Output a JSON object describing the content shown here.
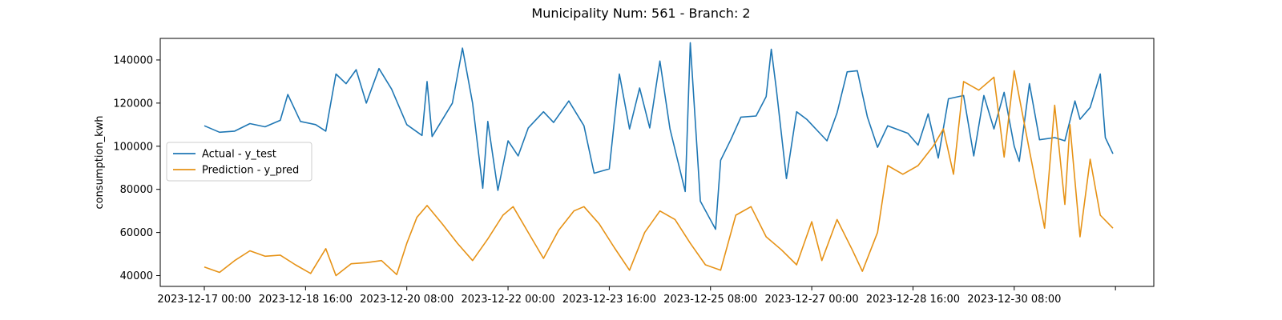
{
  "chart_data": {
    "type": "line",
    "title": "Municipality Num: 561 - Branch: 2",
    "xlabel": "",
    "ylabel": "consumption_kwh",
    "ylim": [
      35000,
      150000
    ],
    "xlim": [
      "2023-12-17 00:00",
      "2023-12-31 23:00"
    ],
    "x_tick_labels": [
      "2023-12-17 00:00",
      "2023-12-18 16:00",
      "2023-12-20 08:00",
      "2023-12-22 00:00",
      "2023-12-23 16:00",
      "2023-12-25 08:00",
      "2023-12-27 00:00",
      "2023-12-28 16:00",
      "2023-12-30 08:00",
      ""
    ],
    "y_ticks": [
      40000,
      60000,
      80000,
      100000,
      120000,
      140000
    ],
    "y_tick_labels": [
      "40000",
      "60000",
      "80000",
      "100000",
      "120000",
      "140000"
    ],
    "legend_position": "center-left",
    "grid": false,
    "series": [
      {
        "name": "Actual - y_test",
        "color": "#1f77b4",
        "points": [
          [
            "2023-12-17 00:00",
            109500
          ],
          [
            "2023-12-17 06:00",
            106500
          ],
          [
            "2023-12-17 12:00",
            107000
          ],
          [
            "2023-12-17 18:00",
            110500
          ],
          [
            "2023-12-18 00:00",
            109000
          ],
          [
            "2023-12-18 06:00",
            112000
          ],
          [
            "2023-12-18 09:00",
            124000
          ],
          [
            "2023-12-18 14:00",
            111500
          ],
          [
            "2023-12-18 20:00",
            110000
          ],
          [
            "2023-12-19 00:00",
            107000
          ],
          [
            "2023-12-19 04:00",
            133500
          ],
          [
            "2023-12-19 08:00",
            129000
          ],
          [
            "2023-12-19 12:00",
            135500
          ],
          [
            "2023-12-19 16:00",
            120000
          ],
          [
            "2023-12-19 21:00",
            136000
          ],
          [
            "2023-12-20 02:00",
            126500
          ],
          [
            "2023-12-20 08:00",
            110000
          ],
          [
            "2023-12-20 14:00",
            105000
          ],
          [
            "2023-12-20 16:00",
            130000
          ],
          [
            "2023-12-20 18:00",
            104500
          ],
          [
            "2023-12-21 02:00",
            120000
          ],
          [
            "2023-12-21 06:00",
            145500
          ],
          [
            "2023-12-21 10:00",
            120000
          ],
          [
            "2023-12-21 14:00",
            80500
          ],
          [
            "2023-12-21 16:00",
            111500
          ],
          [
            "2023-12-21 20:00",
            79500
          ],
          [
            "2023-12-22 00:00",
            102500
          ],
          [
            "2023-12-22 04:00",
            95500
          ],
          [
            "2023-12-22 08:00",
            108500
          ],
          [
            "2023-12-22 14:00",
            116000
          ],
          [
            "2023-12-22 18:00",
            111000
          ],
          [
            "2023-12-23 00:00",
            121000
          ],
          [
            "2023-12-23 06:00",
            109500
          ],
          [
            "2023-12-23 10:00",
            87500
          ],
          [
            "2023-12-23 16:00",
            89500
          ],
          [
            "2023-12-23 20:00",
            133500
          ],
          [
            "2023-12-24 00:00",
            108000
          ],
          [
            "2023-12-24 04:00",
            127000
          ],
          [
            "2023-12-24 08:00",
            108500
          ],
          [
            "2023-12-24 12:00",
            139500
          ],
          [
            "2023-12-24 16:00",
            108000
          ],
          [
            "2023-12-24 22:00",
            79000
          ],
          [
            "2023-12-25 00:00",
            148000
          ],
          [
            "2023-12-25 04:00",
            74500
          ],
          [
            "2023-12-25 10:00",
            61500
          ],
          [
            "2023-12-25 12:00",
            93500
          ],
          [
            "2023-12-25 16:00",
            103000
          ],
          [
            "2023-12-25 20:00",
            113500
          ],
          [
            "2023-12-26 02:00",
            114000
          ],
          [
            "2023-12-26 06:00",
            123000
          ],
          [
            "2023-12-26 08:00",
            145000
          ],
          [
            "2023-12-26 10:00",
            126500
          ],
          [
            "2023-12-26 14:00",
            85000
          ],
          [
            "2023-12-26 18:00",
            116000
          ],
          [
            "2023-12-26 22:00",
            112500
          ],
          [
            "2023-12-27 06:00",
            102500
          ],
          [
            "2023-12-27 10:00",
            115500
          ],
          [
            "2023-12-27 14:00",
            134500
          ],
          [
            "2023-12-27 18:00",
            135000
          ],
          [
            "2023-12-27 22:00",
            113500
          ],
          [
            "2023-12-28 02:00",
            99500
          ],
          [
            "2023-12-28 06:00",
            109500
          ],
          [
            "2023-12-28 14:00",
            106000
          ],
          [
            "2023-12-28 18:00",
            100500
          ],
          [
            "2023-12-28 22:00",
            115000
          ],
          [
            "2023-12-29 02:00",
            94500
          ],
          [
            "2023-12-29 06:00",
            122000
          ],
          [
            "2023-12-29 12:00",
            123500
          ],
          [
            "2023-12-29 16:00",
            95500
          ],
          [
            "2023-12-29 20:00",
            123500
          ],
          [
            "2023-12-30 00:00",
            108000
          ],
          [
            "2023-12-30 04:00",
            125000
          ],
          [
            "2023-12-30 08:00",
            100000
          ],
          [
            "2023-12-30 10:00",
            93000
          ],
          [
            "2023-12-30 14:00",
            129000
          ],
          [
            "2023-12-30 18:00",
            103000
          ],
          [
            "2023-12-31 00:00",
            104000
          ],
          [
            "2023-12-31 04:00",
            102500
          ],
          [
            "2023-12-31 08:00",
            121000
          ],
          [
            "2023-12-31 10:00",
            112500
          ],
          [
            "2023-12-31 14:00",
            118000
          ],
          [
            "2023-12-31 18:00",
            133500
          ],
          [
            "2023-12-31 20:00",
            104000
          ],
          [
            "2023-12-31 23:00",
            96500
          ]
        ]
      },
      {
        "name": "Prediction - y_pred",
        "color": "#e69216",
        "points": [
          [
            "2023-12-17 00:00",
            44000
          ],
          [
            "2023-12-17 06:00",
            41500
          ],
          [
            "2023-12-17 12:00",
            47000
          ],
          [
            "2023-12-17 18:00",
            51500
          ],
          [
            "2023-12-18 00:00",
            49000
          ],
          [
            "2023-12-18 06:00",
            49500
          ],
          [
            "2023-12-18 12:00",
            45000
          ],
          [
            "2023-12-18 18:00",
            41000
          ],
          [
            "2023-12-19 00:00",
            52500
          ],
          [
            "2023-12-19 04:00",
            40000
          ],
          [
            "2023-12-19 10:00",
            45500
          ],
          [
            "2023-12-19 16:00",
            46000
          ],
          [
            "2023-12-19 22:00",
            47000
          ],
          [
            "2023-12-20 04:00",
            40500
          ],
          [
            "2023-12-20 08:00",
            55000
          ],
          [
            "2023-12-20 12:00",
            67000
          ],
          [
            "2023-12-20 16:00",
            72500
          ],
          [
            "2023-12-20 22:00",
            64000
          ],
          [
            "2023-12-21 04:00",
            55000
          ],
          [
            "2023-12-21 10:00",
            47000
          ],
          [
            "2023-12-21 16:00",
            57000
          ],
          [
            "2023-12-21 22:00",
            68000
          ],
          [
            "2023-12-22 02:00",
            72000
          ],
          [
            "2023-12-22 08:00",
            60000
          ],
          [
            "2023-12-22 14:00",
            48000
          ],
          [
            "2023-12-22 20:00",
            61000
          ],
          [
            "2023-12-23 02:00",
            70000
          ],
          [
            "2023-12-23 06:00",
            72000
          ],
          [
            "2023-12-23 12:00",
            64000
          ],
          [
            "2023-12-23 18:00",
            53000
          ],
          [
            "2023-12-24 00:00",
            42500
          ],
          [
            "2023-12-24 06:00",
            60000
          ],
          [
            "2023-12-24 12:00",
            70000
          ],
          [
            "2023-12-24 18:00",
            66000
          ],
          [
            "2023-12-25 00:00",
            55000
          ],
          [
            "2023-12-25 06:00",
            45000
          ],
          [
            "2023-12-25 12:00",
            42500
          ],
          [
            "2023-12-25 18:00",
            68000
          ],
          [
            "2023-12-26 00:00",
            72000
          ],
          [
            "2023-12-26 06:00",
            58000
          ],
          [
            "2023-12-26 12:00",
            52000
          ],
          [
            "2023-12-26 18:00",
            45000
          ],
          [
            "2023-12-27 00:00",
            65000
          ],
          [
            "2023-12-27 04:00",
            47000
          ],
          [
            "2023-12-27 10:00",
            66000
          ],
          [
            "2023-12-27 16:00",
            52000
          ],
          [
            "2023-12-27 20:00",
            42000
          ],
          [
            "2023-12-28 02:00",
            60000
          ],
          [
            "2023-12-28 06:00",
            91000
          ],
          [
            "2023-12-28 12:00",
            87000
          ],
          [
            "2023-12-28 18:00",
            91000
          ],
          [
            "2023-12-29 00:00",
            100000
          ],
          [
            "2023-12-29 04:00",
            108000
          ],
          [
            "2023-12-29 08:00",
            87000
          ],
          [
            "2023-12-29 12:00",
            130000
          ],
          [
            "2023-12-29 18:00",
            126000
          ],
          [
            "2023-12-30 00:00",
            132000
          ],
          [
            "2023-12-30 04:00",
            95000
          ],
          [
            "2023-12-30 08:00",
            135000
          ],
          [
            "2023-12-30 14:00",
            98000
          ],
          [
            "2023-12-30 20:00",
            62000
          ],
          [
            "2023-12-31 00:00",
            119000
          ],
          [
            "2023-12-31 04:00",
            73000
          ],
          [
            "2023-12-31 06:00",
            110000
          ],
          [
            "2023-12-31 10:00",
            58000
          ],
          [
            "2023-12-31 14:00",
            94000
          ],
          [
            "2023-12-31 18:00",
            68000
          ],
          [
            "2023-12-31 23:00",
            62000
          ]
        ]
      }
    ]
  }
}
